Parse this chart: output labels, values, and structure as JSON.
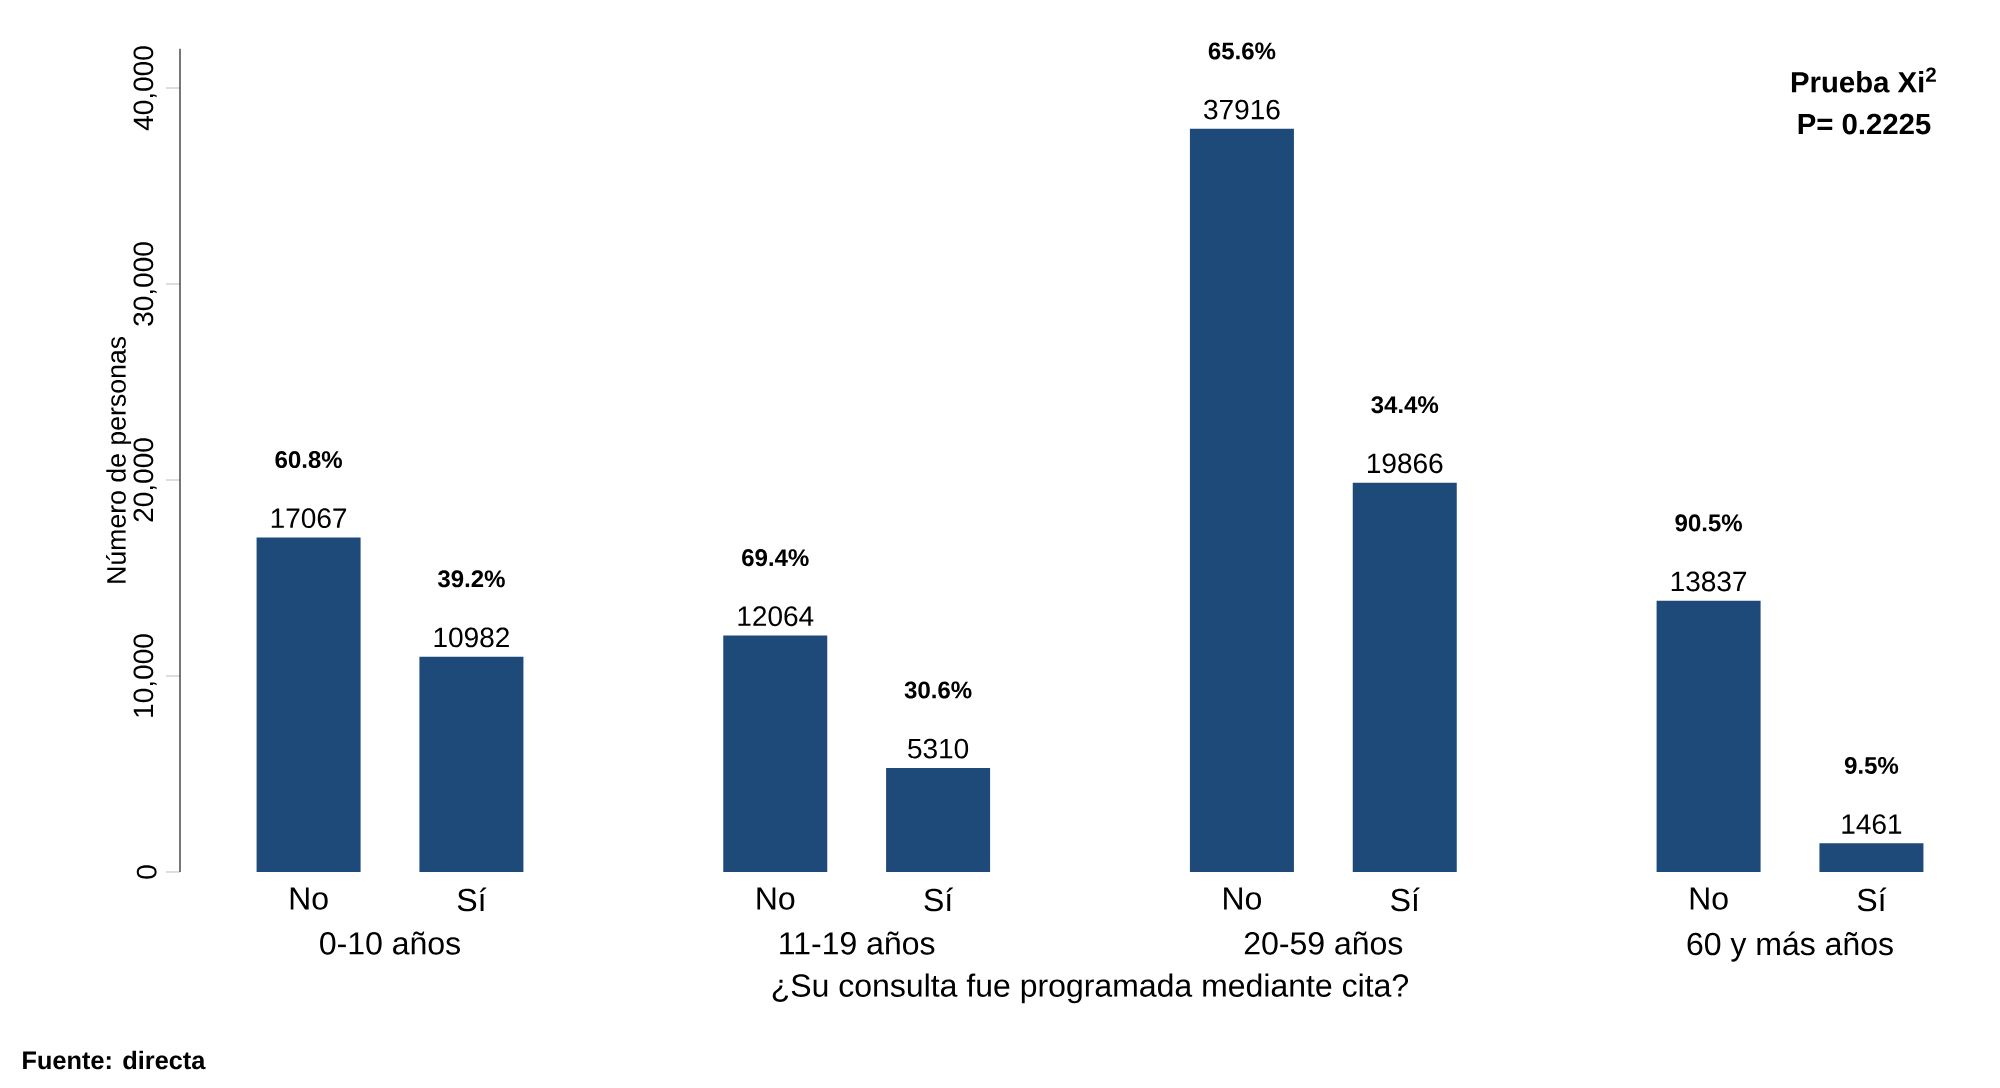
{
  "chart_data": {
    "type": "bar",
    "categories": [
      "0-10 años",
      "11-19 años",
      "20-59 años",
      "60 y más años"
    ],
    "series": [
      {
        "name": "No",
        "color": "#1d4a78",
        "values": [
          17067,
          12064,
          37916,
          13837
        ],
        "value_labels": [
          "17067",
          "12064",
          "37916",
          "13837"
        ]
      },
      {
        "name": "Sí",
        "color": "#1d4a78",
        "values": [
          10982,
          5310,
          19866,
          1461
        ],
        "value_labels": [
          "10982",
          "5310",
          "19866",
          "1461"
        ]
      }
    ],
    "xlabel": "¿Su consulta fue programada mediante cita?",
    "ylabel": "Número de personas",
    "ylim": [
      0,
      42000
    ],
    "yticks": [
      0,
      {
        "value": 10000,
        "label": "10,000"
      },
      {
        "value": 20000,
        "label": "20,000"
      },
      {
        "value": 30000,
        "label": "30,000"
      },
      {
        "value": 40000,
        "label": "40,000"
      }
    ],
    "grid": false,
    "annotations": [
      "Prueba Xi$^{2}$",
      "P= 0.2225",
      "Fuente: directa",
      "60.8%",
      "69.4%",
      "65.6%",
      "90.5%",
      "39.2%",
      "30.6%",
      "34.4%",
      "9.5%"
    ]
  }
}
